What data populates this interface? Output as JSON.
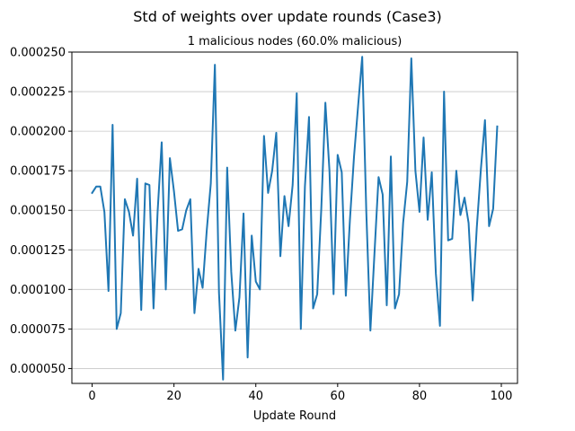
{
  "chart_data": {
    "type": "line",
    "title": "Std of weights over update rounds (Case3)",
    "subtitle": "1 malicious nodes (60.0% malicious)",
    "xlabel": "Update Round",
    "ylabel": "",
    "xlim": [
      -4.95,
      103.95
    ],
    "ylim": [
      4.06e-05,
      0.00025
    ],
    "xticks": [
      0,
      20,
      40,
      60,
      80,
      100
    ],
    "xtick_labels": [
      "0",
      "20",
      "40",
      "60",
      "80",
      "100"
    ],
    "yticks": [
      5e-05,
      7.5e-05,
      0.0001,
      0.000125,
      0.00015,
      0.000175,
      0.0002,
      0.000225,
      0.00025
    ],
    "ytick_labels": [
      "0.000050",
      "0.000075",
      "0.000100",
      "0.000125",
      "0.000150",
      "0.000175",
      "0.000200",
      "0.000225",
      "0.000250"
    ],
    "grid": {
      "x": false,
      "y": true
    },
    "color": "#1f77b4",
    "series": [
      {
        "x": [
          0,
          1,
          2,
          3,
          4,
          5,
          6,
          7,
          8,
          9,
          10,
          11,
          12,
          13,
          14,
          15,
          16,
          17,
          18,
          19,
          20,
          21,
          22,
          23,
          24,
          25,
          26,
          27,
          28,
          29,
          30,
          31,
          32,
          33,
          34,
          35,
          36,
          37,
          38,
          39,
          40,
          41,
          42,
          43,
          44,
          45,
          46,
          47,
          48,
          49,
          50,
          51,
          52,
          53,
          54,
          55,
          56,
          57,
          58,
          59,
          60,
          61,
          62,
          63,
          64,
          65,
          66,
          67,
          68,
          69,
          70,
          71,
          72,
          73,
          74,
          75,
          76,
          77,
          78,
          79,
          80,
          81,
          82,
          83,
          84,
          85,
          86,
          87,
          88,
          89,
          90,
          91,
          92,
          93,
          94,
          95,
          96,
          97,
          98,
          99
        ],
        "values": [
          0.000161,
          0.000165,
          0.000165,
          0.000149,
          9.9e-05,
          0.000204,
          7.5e-05,
          8.5e-05,
          0.000157,
          0.000149,
          0.000134,
          0.00017,
          8.7e-05,
          0.000167,
          0.000166,
          8.8e-05,
          0.000149,
          0.000193,
          0.0001,
          0.000183,
          0.000162,
          0.000137,
          0.000138,
          0.00015,
          0.000157,
          8.5e-05,
          0.000113,
          0.000101,
          0.000137,
          0.000167,
          0.000242,
          9.8e-05,
          4.3e-05,
          0.000177,
          0.000111,
          7.4e-05,
          9.5e-05,
          0.000148,
          5.7e-05,
          0.000134,
          0.000105,
          0.0001,
          0.000197,
          0.000161,
          0.000175,
          0.000199,
          0.000121,
          0.000159,
          0.00014,
          0.000166,
          0.000224,
          7.5e-05,
          0.000165,
          0.000209,
          8.8e-05,
          9.7e-05,
          0.000151,
          0.000218,
          0.000175,
          9.7e-05,
          0.000185,
          0.000174,
          9.6e-05,
          0.000144,
          0.000184,
          0.000216,
          0.000247,
          0.000149,
          7.4e-05,
          0.000123,
          0.000171,
          0.00016,
          9e-05,
          0.000184,
          8.8e-05,
          9.7e-05,
          0.000142,
          0.000168,
          0.000246,
          0.000175,
          0.000149,
          0.000196,
          0.000144,
          0.000174,
          0.00011,
          7.7e-05,
          0.000225,
          0.000131,
          0.000132,
          0.000175,
          0.000147,
          0.000158,
          0.000142,
          9.3e-05,
          0.000139,
          0.000176,
          0.000207,
          0.00014,
          0.000151,
          0.000203
        ]
      }
    ]
  }
}
